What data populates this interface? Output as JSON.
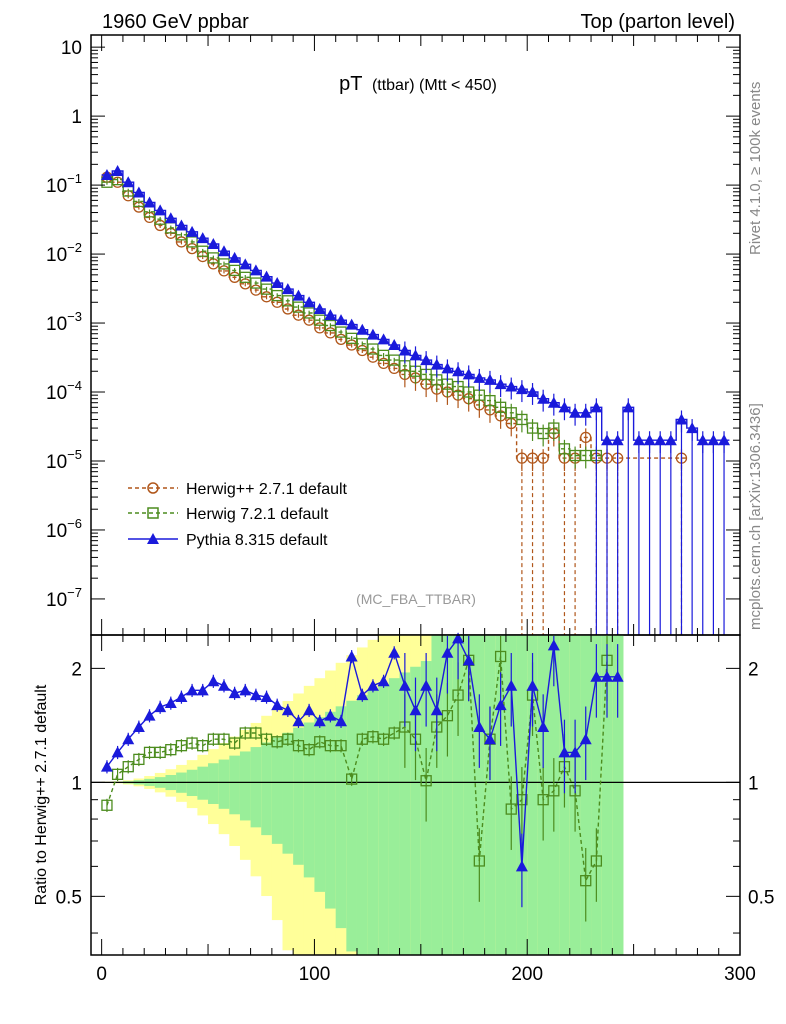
{
  "chart_data": {
    "type": "line",
    "header_left": "1960 GeV ppbar",
    "header_right": "Top (parton level)",
    "title_main": "pT",
    "title_sub": "(ttbar) (Mtt < 450)",
    "analysis_tag": "(MC_FBA_TTBAR)",
    "side_label_rivet": "Rivet 4.1.0, ≥ 100k events",
    "side_label_mcplots": "mcplots.cern.ch [arXiv:1306.3436]",
    "ratio_ylabel": "Ratio to Herwig++ 2.7.1 default",
    "x_axis": {
      "range": [
        -5,
        300
      ],
      "ticks": [
        "0",
        "100",
        "200",
        "300"
      ]
    },
    "top_y_axis": {
      "scale": "log",
      "range": [
        3e-08,
        15
      ],
      "tick_labels": [
        {
          "v": 10,
          "base": "10",
          "exp": ""
        },
        {
          "v": 1,
          "base": "1",
          "exp": ""
        },
        {
          "v": 0.1,
          "base": "10",
          "exp": "−1"
        },
        {
          "v": 0.01,
          "base": "10",
          "exp": "−2"
        },
        {
          "v": 0.001,
          "base": "10",
          "exp": "−3"
        },
        {
          "v": 0.0001,
          "base": "10",
          "exp": "−4"
        },
        {
          "v": 1e-05,
          "base": "10",
          "exp": "−5"
        },
        {
          "v": 1e-06,
          "base": "10",
          "exp": "−6"
        },
        {
          "v": 1e-07,
          "base": "10",
          "exp": "−7"
        }
      ]
    },
    "ratio_y_axis": {
      "scale": "log",
      "range": [
        0.35,
        2.45
      ],
      "tick_labels": [
        {
          "v": 2,
          "text": "2"
        },
        {
          "v": 1,
          "text": "1"
        },
        {
          "v": 0.5,
          "text": "0.5"
        }
      ]
    },
    "legend": [
      {
        "label": "Herwig++ 2.7.1 default",
        "color": "#b0561a",
        "marker": "circle",
        "dash": true
      },
      {
        "label": "Herwig 7.2.1 default",
        "color": "#4c8c1e",
        "marker": "square",
        "dash": true
      },
      {
        "label": "Pythia 8.315 default",
        "color": "#1a1adb",
        "marker": "triangle",
        "dash": false
      }
    ],
    "series": [
      {
        "name": "Herwig++ 2.7.1 default",
        "points": [
          [
            2.5,
            0.13
          ],
          [
            7.5,
            0.11
          ],
          [
            12.5,
            0.07
          ],
          [
            17.5,
            0.048
          ],
          [
            22.5,
            0.034
          ],
          [
            27.5,
            0.026
          ],
          [
            32.5,
            0.02
          ],
          [
            37.5,
            0.015
          ],
          [
            42.5,
            0.012
          ],
          [
            47.5,
            0.0092
          ],
          [
            52.5,
            0.0072
          ],
          [
            57.5,
            0.0057
          ],
          [
            62.5,
            0.0046
          ],
          [
            67.5,
            0.0037
          ],
          [
            72.5,
            0.003
          ],
          [
            77.5,
            0.0024
          ],
          [
            82.5,
            0.002
          ],
          [
            87.5,
            0.0016
          ],
          [
            92.5,
            0.0013
          ],
          [
            97.5,
            0.0011
          ],
          [
            102.5,
            0.00085
          ],
          [
            107.5,
            0.00072
          ],
          [
            112.5,
            0.00058
          ],
          [
            117.5,
            0.00048
          ],
          [
            122.5,
            0.0004
          ],
          [
            127.5,
            0.00032
          ],
          [
            132.5,
            0.00026
          ],
          [
            137.5,
            0.00022
          ],
          [
            142.5,
            0.00018
          ],
          [
            147.5,
            0.00016
          ],
          [
            152.5,
            0.00013
          ],
          [
            157.5,
            0.00011
          ],
          [
            162.5,
            0.0001
          ],
          [
            167.5,
            9e-05
          ],
          [
            172.5,
            8e-05
          ],
          [
            177.5,
            6.5e-05
          ],
          [
            182.5,
            5.5e-05
          ],
          [
            187.5,
            4.5e-05
          ],
          [
            192.5,
            3.5e-05
          ],
          [
            197.5,
            1.1e-05
          ],
          [
            202.5,
            1.1e-05
          ],
          [
            207.5,
            1.1e-05
          ],
          [
            212.5,
            2.5e-05
          ],
          [
            217.5,
            1.1e-05
          ],
          [
            222.5,
            1.1e-05
          ],
          [
            227.5,
            2.2e-05
          ],
          [
            232.5,
            1.1e-05
          ],
          [
            237.5,
            1.1e-05
          ],
          [
            242.5,
            1.1e-05
          ],
          [
            272.5,
            1.1e-05
          ]
        ]
      },
      {
        "name": "Herwig 7.2.1 default",
        "points": [
          [
            2.5,
            0.11
          ],
          [
            7.5,
            0.12
          ],
          [
            12.5,
            0.082
          ],
          [
            17.5,
            0.058
          ],
          [
            22.5,
            0.041
          ],
          [
            27.5,
            0.032
          ],
          [
            32.5,
            0.024
          ],
          [
            37.5,
            0.019
          ],
          [
            42.5,
            0.015
          ],
          [
            47.5,
            0.011
          ],
          [
            52.5,
            0.0088
          ],
          [
            57.5,
            0.0072
          ],
          [
            62.5,
            0.0058
          ],
          [
            67.5,
            0.0046
          ],
          [
            72.5,
            0.0038
          ],
          [
            77.5,
            0.0031
          ],
          [
            82.5,
            0.0025
          ],
          [
            87.5,
            0.0021
          ],
          [
            92.5,
            0.0017
          ],
          [
            97.5,
            0.0014
          ],
          [
            102.5,
            0.0011
          ],
          [
            107.5,
            0.00092
          ],
          [
            112.5,
            0.00074
          ],
          [
            117.5,
            0.0006
          ],
          [
            122.5,
            0.0005
          ],
          [
            127.5,
            0.00042
          ],
          [
            132.5,
            0.00034
          ],
          [
            137.5,
            0.00029
          ],
          [
            142.5,
            0.00024
          ],
          [
            147.5,
            0.0002
          ],
          [
            152.5,
            0.00018
          ],
          [
            157.5,
            0.00015
          ],
          [
            162.5,
            0.00013
          ],
          [
            167.5,
            0.00012
          ],
          [
            172.5,
            0.0001
          ],
          [
            177.5,
            9e-05
          ],
          [
            182.5,
            7.5e-05
          ],
          [
            187.5,
            6e-05
          ],
          [
            192.5,
            5e-05
          ],
          [
            197.5,
            4e-05
          ],
          [
            202.5,
            3e-05
          ],
          [
            207.5,
            2.5e-05
          ],
          [
            212.5,
            3e-05
          ],
          [
            217.5,
            1.5e-05
          ],
          [
            222.5,
            1.2e-05
          ],
          [
            227.5,
            1.2e-05
          ],
          [
            232.5,
            1.2e-05
          ]
        ]
      },
      {
        "name": "Pythia 8.315 default",
        "points": [
          [
            2.5,
            0.14
          ],
          [
            7.5,
            0.16
          ],
          [
            12.5,
            0.11
          ],
          [
            17.5,
            0.078
          ],
          [
            22.5,
            0.056
          ],
          [
            27.5,
            0.043
          ],
          [
            32.5,
            0.033
          ],
          [
            37.5,
            0.026
          ],
          [
            42.5,
            0.021
          ],
          [
            47.5,
            0.017
          ],
          [
            52.5,
            0.014
          ],
          [
            57.5,
            0.011
          ],
          [
            62.5,
            0.0088
          ],
          [
            67.5,
            0.0071
          ],
          [
            72.5,
            0.0058
          ],
          [
            77.5,
            0.0047
          ],
          [
            82.5,
            0.0038
          ],
          [
            87.5,
            0.0031
          ],
          [
            92.5,
            0.0025
          ],
          [
            97.5,
            0.002
          ],
          [
            102.5,
            0.0016
          ],
          [
            107.5,
            0.0013
          ],
          [
            112.5,
            0.0011
          ],
          [
            117.5,
            0.00095
          ],
          [
            122.5,
            0.0008
          ],
          [
            127.5,
            0.00068
          ],
          [
            132.5,
            0.00058
          ],
          [
            137.5,
            0.00048
          ],
          [
            142.5,
            0.0004
          ],
          [
            147.5,
            0.00034
          ],
          [
            152.5,
            0.00029
          ],
          [
            157.5,
            0.00025
          ],
          [
            162.5,
            0.00022
          ],
          [
            167.5,
            0.0002
          ],
          [
            172.5,
            0.00018
          ],
          [
            177.5,
            0.00016
          ],
          [
            182.5,
            0.00015
          ],
          [
            187.5,
            0.00013
          ],
          [
            192.5,
            0.00012
          ],
          [
            197.5,
            0.00011
          ],
          [
            202.5,
            0.0001
          ],
          [
            207.5,
            8e-05
          ],
          [
            212.5,
            7e-05
          ],
          [
            217.5,
            6e-05
          ],
          [
            222.5,
            5e-05
          ],
          [
            227.5,
            5e-05
          ],
          [
            232.5,
            6e-05
          ],
          [
            237.5,
            2e-05
          ],
          [
            242.5,
            2e-05
          ],
          [
            247.5,
            6e-05
          ],
          [
            252.5,
            2e-05
          ],
          [
            257.5,
            2e-05
          ],
          [
            262.5,
            2e-05
          ],
          [
            267.5,
            2e-05
          ],
          [
            272.5,
            4e-05
          ],
          [
            277.5,
            3e-05
          ],
          [
            282.5,
            2e-05
          ],
          [
            287.5,
            2e-05
          ],
          [
            292.5,
            2e-05
          ]
        ]
      }
    ],
    "ratio_series": [
      {
        "name": "Herwig 7.2.1 default",
        "points": [
          [
            2.5,
            0.87
          ],
          [
            7.5,
            1.05
          ],
          [
            12.5,
            1.1
          ],
          [
            17.5,
            1.15
          ],
          [
            22.5,
            1.2
          ],
          [
            27.5,
            1.2
          ],
          [
            32.5,
            1.22
          ],
          [
            37.5,
            1.25
          ],
          [
            42.5,
            1.27
          ],
          [
            47.5,
            1.25
          ],
          [
            52.5,
            1.3
          ],
          [
            57.5,
            1.3
          ],
          [
            62.5,
            1.27
          ],
          [
            67.5,
            1.35
          ],
          [
            72.5,
            1.35
          ],
          [
            77.5,
            1.3
          ],
          [
            82.5,
            1.28
          ],
          [
            87.5,
            1.3
          ],
          [
            92.5,
            1.25
          ],
          [
            97.5,
            1.22
          ],
          [
            102.5,
            1.28
          ],
          [
            107.5,
            1.25
          ],
          [
            112.5,
            1.25
          ],
          [
            117.5,
            1.02
          ],
          [
            122.5,
            1.3
          ],
          [
            127.5,
            1.32
          ],
          [
            132.5,
            1.3
          ],
          [
            137.5,
            1.35
          ],
          [
            142.5,
            1.4
          ],
          [
            147.5,
            1.3
          ],
          [
            152.5,
            1.01
          ],
          [
            157.5,
            1.4
          ],
          [
            162.5,
            1.5
          ],
          [
            167.5,
            1.7
          ],
          [
            172.5,
            2.1
          ],
          [
            177.5,
            0.62
          ],
          [
            182.5,
            1.3
          ],
          [
            187.5,
            2.15
          ],
          [
            192.5,
            0.85
          ],
          [
            197.5,
            0.9
          ],
          [
            202.5,
            1.7
          ],
          [
            207.5,
            0.9
          ],
          [
            212.5,
            0.95
          ],
          [
            217.5,
            1.1
          ],
          [
            222.5,
            0.95
          ],
          [
            227.5,
            0.55
          ],
          [
            232.5,
            0.62
          ],
          [
            237.5,
            2.1
          ]
        ]
      },
      {
        "name": "Pythia 8.315 default",
        "points": [
          [
            2.5,
            1.1
          ],
          [
            7.5,
            1.2
          ],
          [
            12.5,
            1.3
          ],
          [
            17.5,
            1.4
          ],
          [
            22.5,
            1.5
          ],
          [
            27.5,
            1.58
          ],
          [
            32.5,
            1.62
          ],
          [
            37.5,
            1.68
          ],
          [
            42.5,
            1.75
          ],
          [
            47.5,
            1.75
          ],
          [
            52.5,
            1.85
          ],
          [
            57.5,
            1.8
          ],
          [
            62.5,
            1.72
          ],
          [
            67.5,
            1.75
          ],
          [
            72.5,
            1.7
          ],
          [
            77.5,
            1.68
          ],
          [
            82.5,
            1.6
          ],
          [
            87.5,
            1.55
          ],
          [
            92.5,
            1.45
          ],
          [
            97.5,
            1.55
          ],
          [
            102.5,
            1.45
          ],
          [
            107.5,
            1.5
          ],
          [
            112.5,
            1.45
          ],
          [
            117.5,
            2.15
          ],
          [
            122.5,
            1.7
          ],
          [
            127.5,
            1.8
          ],
          [
            132.5,
            1.85
          ],
          [
            137.5,
            2.2
          ],
          [
            142.5,
            1.8
          ],
          [
            147.5,
            1.55
          ],
          [
            152.5,
            1.8
          ],
          [
            157.5,
            1.55
          ],
          [
            162.5,
            2.2
          ],
          [
            167.5,
            2.4
          ],
          [
            172.5,
            2.1
          ],
          [
            177.5,
            1.4
          ],
          [
            182.5,
            1.3
          ],
          [
            187.5,
            1.6
          ],
          [
            192.5,
            1.8
          ],
          [
            197.5,
            0.6
          ],
          [
            202.5,
            1.8
          ],
          [
            207.5,
            1.4
          ],
          [
            212.5,
            2.3
          ],
          [
            217.5,
            1.2
          ],
          [
            222.5,
            1.2
          ],
          [
            227.5,
            1.3
          ],
          [
            232.5,
            1.9
          ],
          [
            237.5,
            1.9
          ],
          [
            242.5,
            1.9
          ]
        ]
      }
    ]
  }
}
